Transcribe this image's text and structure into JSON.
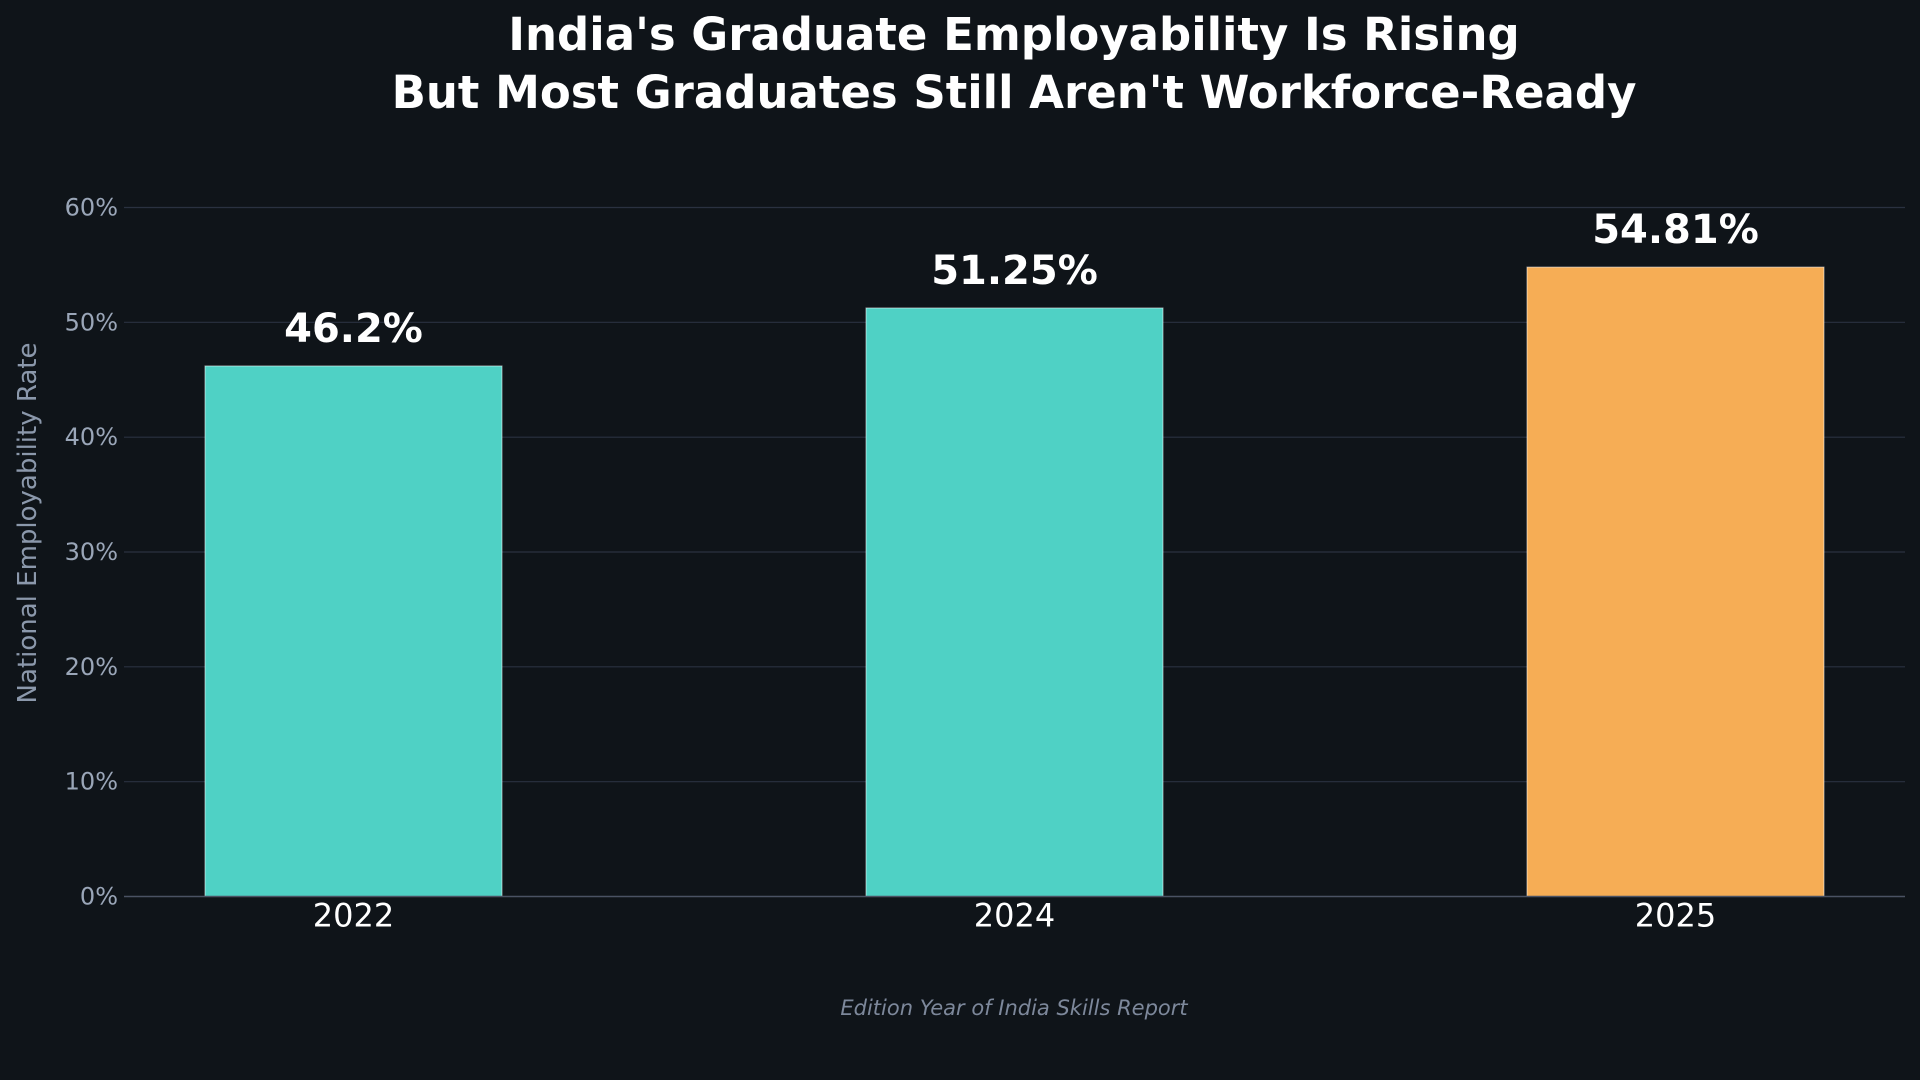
{
  "chart_data": {
    "type": "bar",
    "title": "India's Graduate Employability Is Rising",
    "subtitle": "But Most Graduates Still Aren't Workforce-Ready",
    "xlabel": "Edition Year of India Skills Report",
    "ylabel": "National Employability Rate",
    "categories": [
      "2022",
      "2024",
      "2025"
    ],
    "values": [
      46.2,
      51.25,
      54.81
    ],
    "value_labels": [
      "46.2%",
      "51.25%",
      "54.81%"
    ],
    "bar_colors": [
      "#4fd1c5",
      "#4fd1c5",
      "#f6ad55"
    ],
    "ylim": [
      0,
      60
    ],
    "yticks": [
      0,
      10,
      20,
      30,
      40,
      50,
      60
    ],
    "ytick_labels": [
      "0%",
      "10%",
      "20%",
      "30%",
      "40%",
      "50%",
      "60%"
    ],
    "grid": true,
    "legend": "none"
  },
  "colors": {
    "background": "#0f1419",
    "grid": "#2a3140",
    "axis": "#4a5263",
    "bar_primary": "#4fd1c5",
    "bar_highlight": "#f6ad55"
  }
}
